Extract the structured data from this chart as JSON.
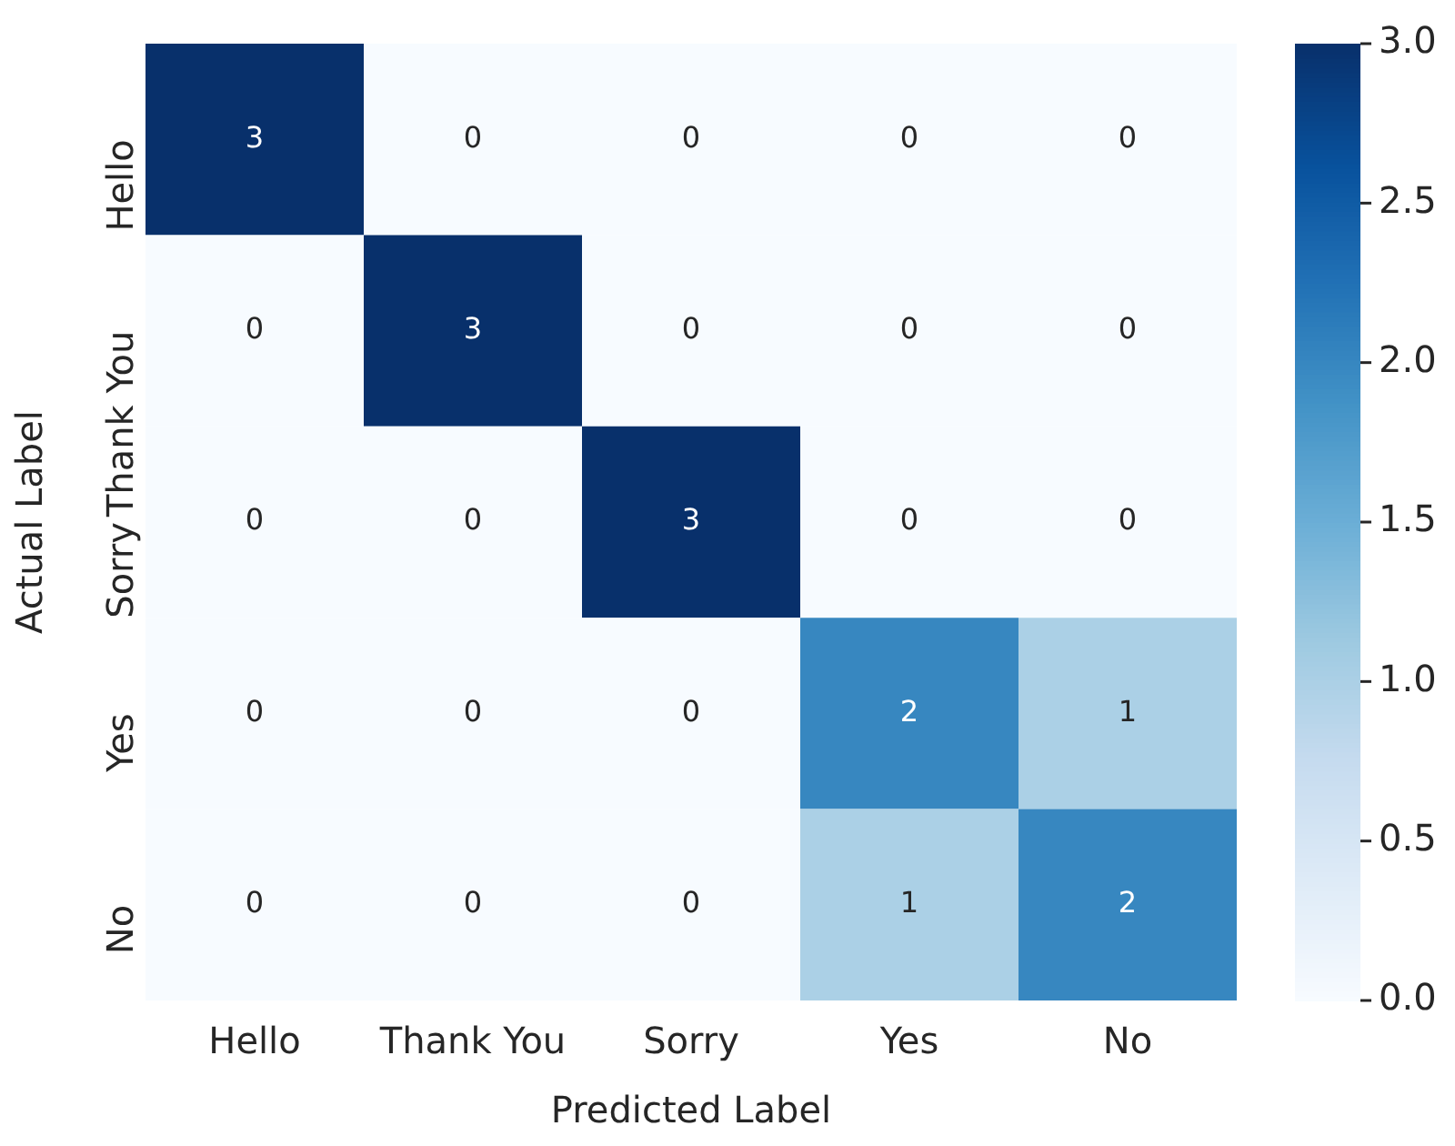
{
  "chart_data": {
    "type": "heatmap",
    "xlabel": "Predicted Label",
    "ylabel": "Actual Label",
    "categories": [
      "Hello",
      "Thank You",
      "Sorry",
      "Yes",
      "No"
    ],
    "y_categories": [
      "Hello",
      "Thank You",
      "Sorry",
      "Yes",
      "No"
    ],
    "cells": [
      [
        3,
        0,
        0,
        0,
        0
      ],
      [
        0,
        3,
        0,
        0,
        0
      ],
      [
        0,
        0,
        3,
        0,
        0
      ],
      [
        0,
        0,
        0,
        2,
        1
      ],
      [
        0,
        0,
        0,
        1,
        2
      ]
    ],
    "data_labels": true,
    "grid": false,
    "legend": false,
    "clim": [
      0.0,
      3.0
    ],
    "cticks": [
      {
        "value": 0,
        "label": "0.0"
      },
      {
        "value": 0.5,
        "label": "0.5"
      },
      {
        "value": 1,
        "label": "1.0"
      },
      {
        "value": 1.5,
        "label": "1.5"
      },
      {
        "value": 2,
        "label": "2.0"
      },
      {
        "value": 2.5,
        "label": "2.5"
      },
      {
        "value": 3,
        "label": "3.0"
      }
    ]
  }
}
